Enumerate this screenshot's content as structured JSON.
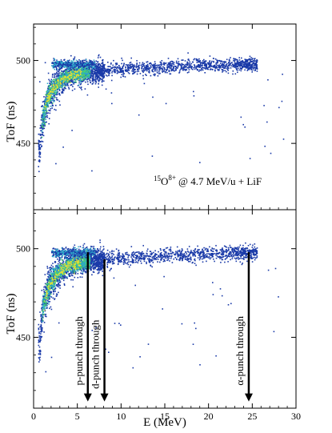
{
  "chart_data": [
    {
      "type": "scatter",
      "panel": "top",
      "ylabel": "ToF (ns)",
      "xlabel": "",
      "xlim": [
        0,
        30
      ],
      "ylim": [
        410,
        522
      ],
      "yticks": [
        450,
        500
      ],
      "xticks": [
        0,
        5,
        10,
        15,
        20,
        25,
        30
      ],
      "show_x_tick_labels": false,
      "annotation": {
        "mass_number": "15",
        "element": "O",
        "charge": "8+",
        "rest": "@ 4.7 MeV/u + LiF"
      },
      "locus": [
        {
          "e": 0.6,
          "tof": 445
        },
        {
          "e": 1.0,
          "tof": 466
        },
        {
          "e": 1.5,
          "tof": 476
        },
        {
          "e": 2.0,
          "tof": 482
        },
        {
          "e": 3.0,
          "tof": 488
        },
        {
          "e": 4.0,
          "tof": 491
        },
        {
          "e": 6.0,
          "tof": 493
        },
        {
          "e": 10.0,
          "tof": 495
        },
        {
          "e": 15.0,
          "tof": 496.5
        },
        {
          "e": 20.0,
          "tof": 497.5
        },
        {
          "e": 24.0,
          "tof": 498
        }
      ],
      "points_seed": 11
    },
    {
      "type": "scatter",
      "panel": "bottom",
      "ylabel": "ToF (ns)",
      "xlabel": "E (MeV)",
      "xlim": [
        0,
        30
      ],
      "ylim": [
        410,
        522
      ],
      "yticks": [
        450,
        500
      ],
      "xticks": [
        0,
        5,
        10,
        15,
        20,
        25,
        30
      ],
      "show_x_tick_labels": true,
      "locus": [
        {
          "e": 0.6,
          "tof": 445
        },
        {
          "e": 1.0,
          "tof": 466
        },
        {
          "e": 1.5,
          "tof": 476
        },
        {
          "e": 2.0,
          "tof": 482
        },
        {
          "e": 3.0,
          "tof": 488
        },
        {
          "e": 4.0,
          "tof": 491
        },
        {
          "e": 6.0,
          "tof": 493
        },
        {
          "e": 10.0,
          "tof": 495
        },
        {
          "e": 15.0,
          "tof": 496.5
        },
        {
          "e": 20.0,
          "tof": 497.5
        },
        {
          "e": 24.0,
          "tof": 498
        }
      ],
      "points_seed": 23,
      "arrows": [
        {
          "label": "p-punch through",
          "e": 6.2,
          "tof_top": 498,
          "tof_bottom": 412
        },
        {
          "label": "d-punch through",
          "e": 8.1,
          "tof_top": 494,
          "tof_bottom": 412
        },
        {
          "label": "α-punch through",
          "e": 24.6,
          "tof_top": 498,
          "tof_bottom": 412
        }
      ]
    }
  ],
  "colors": {
    "low": "#1a3aa8",
    "mid": "#2aa8c8",
    "high": "#4ad070",
    "peak": "#e8e030",
    "axis": "#000000"
  }
}
